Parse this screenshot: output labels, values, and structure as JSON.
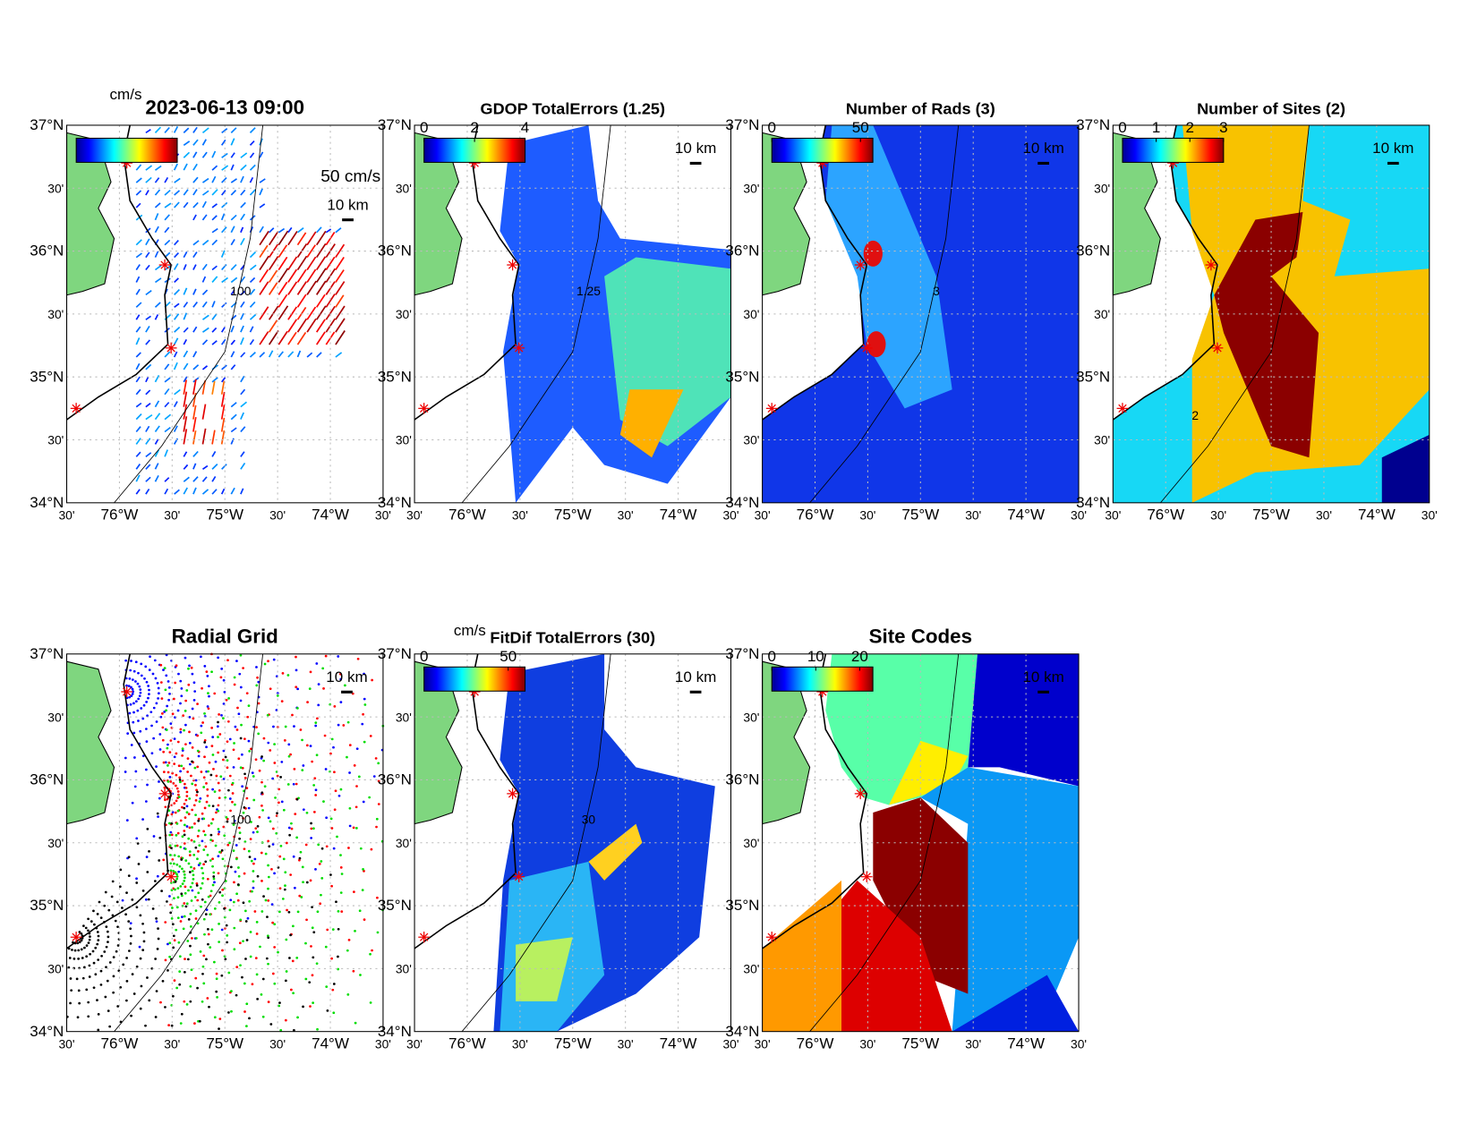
{
  "y_labels": [
    "37°N",
    "30'",
    "36°N",
    "30'",
    "35°N",
    "30'",
    "34°N"
  ],
  "x_labels": [
    "30'",
    "76°W",
    "30'",
    "75°W",
    "30'",
    "74°W",
    "30'"
  ],
  "scale_bar": "10 km",
  "panels": [
    {
      "title": "2023-06-13 09:00",
      "colorbar": {
        "unit": "cm/s"
      },
      "vector_scale": "50 cm/s",
      "contour_label": "100"
    },
    {
      "title": "GDOP TotalErrors (1.25)",
      "colorbar": {
        "clim": [
          0,
          4
        ],
        "ticks": [
          0,
          2,
          4
        ]
      },
      "contour_label": "1.25"
    },
    {
      "title": "Number of Rads (3)",
      "colorbar": {
        "clim": [
          0,
          57
        ],
        "ticks": [
          0,
          50
        ]
      },
      "contour_label": "3"
    },
    {
      "title": "Number of Sites (2)",
      "colorbar": {
        "clim": [
          0,
          3
        ],
        "ticks": [
          0,
          1,
          2,
          3
        ]
      },
      "contour_label": "2"
    },
    {
      "title": "Radial Grid",
      "contour_label": "100"
    },
    {
      "title": "FitDif TotalErrors (30)",
      "colorbar": {
        "unit": "cm/s",
        "clim": [
          0,
          60
        ],
        "ticks": [
          0,
          50
        ]
      },
      "contour_label": "30"
    },
    {
      "title": "Site Codes",
      "colorbar": {
        "clim": [
          0,
          23
        ],
        "ticks": [
          0,
          10,
          20
        ]
      }
    }
  ]
}
